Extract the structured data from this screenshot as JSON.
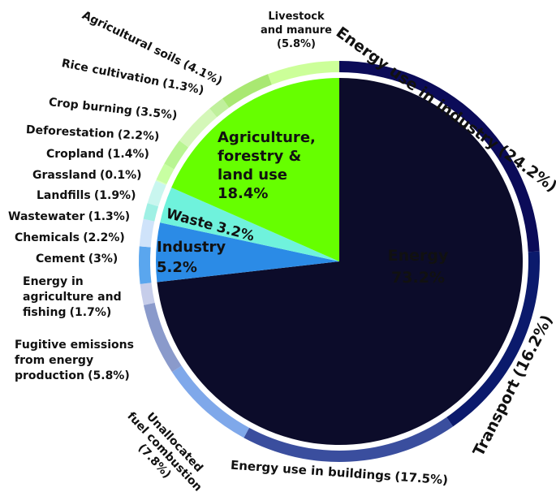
{
  "chart_data": {
    "type": "sunburst",
    "inner": {
      "categories": [
        [
          "Energy"
        ],
        [
          "Industry"
        ],
        [
          "Waste"
        ],
        [
          "Agriculture,",
          "forestry &",
          "land use"
        ]
      ],
      "values": [
        73.2,
        5.2,
        3.2,
        18.4
      ],
      "value_labels": [
        "73.2%",
        "5.2%",
        "3.2%",
        "18.4%"
      ],
      "colors": [
        "#0c0c2a",
        "#2b8be6",
        "#6ff2dc",
        "#66ff00"
      ]
    },
    "outer": {
      "categories": [
        [
          "Energy use in industry"
        ],
        [
          "Transport"
        ],
        [
          "Energy use in buildings"
        ],
        [
          "Unallocated",
          "fuel combustion"
        ],
        [
          "Fugitive emissions",
          "from energy",
          "production"
        ],
        [
          "Energy in",
          "agriculture and",
          "fishing"
        ],
        [
          "Cement"
        ],
        [
          "Chemicals"
        ],
        [
          "Wastewater"
        ],
        [
          "Landfills"
        ],
        [
          "Grassland"
        ],
        [
          "Cropland"
        ],
        [
          "Deforestation"
        ],
        [
          "Crop burning"
        ],
        [
          "Rice cultivation"
        ],
        [
          "Agricultural soils"
        ],
        [
          "Livestock",
          "and manure"
        ]
      ],
      "values": [
        24.2,
        16.2,
        17.5,
        7.8,
        5.8,
        1.7,
        3,
        2.2,
        1.3,
        1.9,
        0.1,
        1.4,
        2.2,
        3.5,
        1.3,
        4.1,
        5.8
      ],
      "value_labels": [
        "(24.2%)",
        "(16.2%)",
        "(17.5%)",
        "(7.8%)",
        "(5.8%)",
        "(1.7%)",
        "(3%)",
        "(2.2%)",
        "(1.3%)",
        "(1.9%)",
        "(0.1%)",
        "(1.4%)",
        "(2.2%)",
        "(3.5%)",
        "(1.3%)",
        "(4.1%)",
        "(5.8%)"
      ],
      "colors": [
        "#0b0b58",
        "#0b1a6c",
        "#3a4e9e",
        "#7fa8ea",
        "#8a9acb",
        "#c6cdea",
        "#5aa6ee",
        "#cfe3fa",
        "#9ff0e4",
        "#c9f6ef",
        "#d9ffc2",
        "#c8ffa2",
        "#b9f592",
        "#d4f7b8",
        "#c0f09c",
        "#a9e872",
        "#ccff99"
      ]
    }
  }
}
